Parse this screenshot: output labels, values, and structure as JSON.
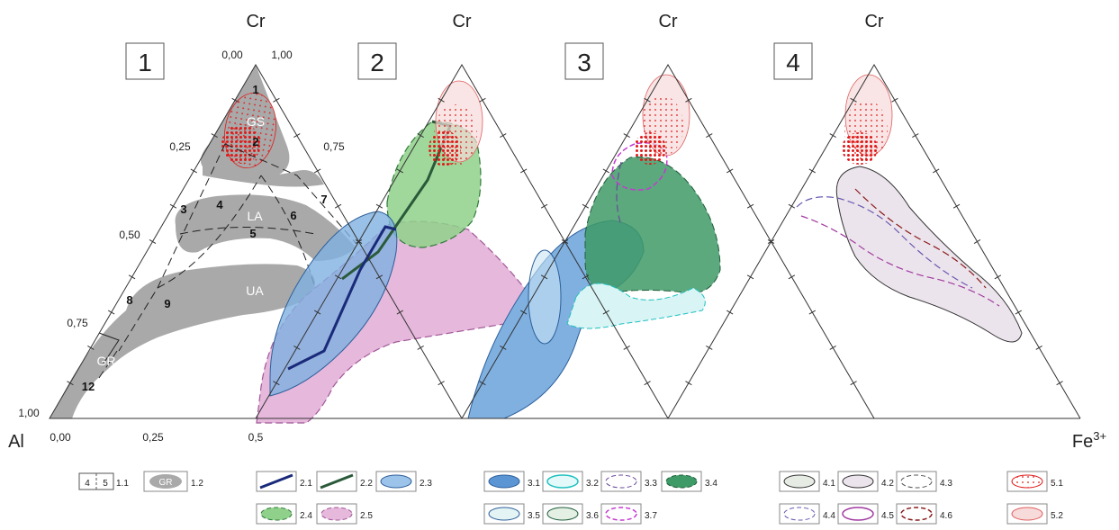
{
  "apex": {
    "top": "Cr",
    "left": "Al",
    "right_base": "Fe",
    "right_sup": "3+"
  },
  "panels": [
    "1",
    "2",
    "3",
    "4"
  ],
  "axis_ticks": {
    "left_side": [
      "0,25",
      "0,50",
      "0,75",
      "1,00"
    ],
    "right_side": [
      "0,75"
    ],
    "top": [
      "0,00",
      "1,00"
    ],
    "bottom": [
      "0,00",
      "0,25",
      "0,5"
    ]
  },
  "zones": {
    "numbers": [
      "1",
      "2",
      "3",
      "4",
      "5",
      "6",
      "7",
      "8",
      "9",
      "12"
    ],
    "names": [
      "GS",
      "LA",
      "UA",
      "GR"
    ]
  },
  "legend": {
    "row1": [
      "1.1",
      "1.2",
      "2.1",
      "2.2",
      "2.3",
      "3.1",
      "3.2",
      "3.3",
      "3.4",
      "4.1",
      "4.2",
      "4.3",
      "5.1"
    ],
    "row2": [
      "2.4",
      "2.5",
      "3.5",
      "3.6",
      "3.7",
      "4.4",
      "4.5",
      "4.6",
      "5.2"
    ],
    "key_digits": [
      "4",
      "5"
    ],
    "gr_swatch": "GR"
  },
  "colors": {
    "gray_zone": "#a9a9a9",
    "red_dots": "#e01818",
    "green": "#8fd18a",
    "pink": "#e6b8dc",
    "blue": "#7fb0e0",
    "dark_green": "#3e9a66",
    "navy": "#1a2a7a"
  }
}
